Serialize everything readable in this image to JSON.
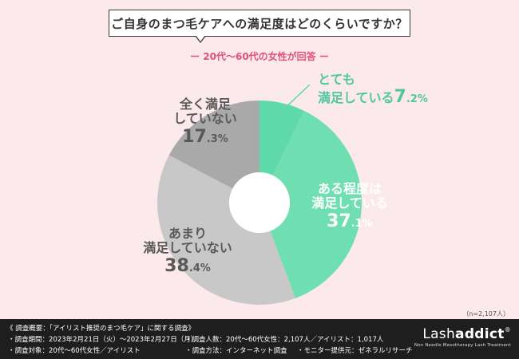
{
  "title": "ご自身のまつ毛ケアへの満足度はどのくらいですか？",
  "subtitle": "ー 20代〜60代の女性が回答 ー",
  "sample_size": "（n=2,107人）",
  "chart_data": {
    "type": "pie",
    "donut": true,
    "slices": [
      {
        "label": "とても満足している",
        "value": 7.2,
        "color": "#5ed9a9"
      },
      {
        "label": "ある程度は満足している",
        "value": 37.1,
        "color": "#6fdfb2"
      },
      {
        "label": "あまり満足していない",
        "value": 38.4,
        "color": "#c8c8c8"
      },
      {
        "label": "全く満足していない",
        "value": 17.3,
        "color": "#a9a9a9"
      }
    ],
    "label_text": {
      "s0": {
        "line1": "とても",
        "line2": "満足している",
        "pct_big": "7",
        "pct_small": ".2%"
      },
      "s1": {
        "line1": "ある程度は",
        "line2": "満足している",
        "pct_big": "37",
        "pct_small": ".1%"
      },
      "s2": {
        "line1": "あまり",
        "line2": "満足していない",
        "pct_big": "38",
        "pct_small": ".4%"
      },
      "s3": {
        "line1": "全く満足",
        "line2": "していない",
        "pct_big": "17",
        "pct_small": ".3%"
      }
    }
  },
  "footer": {
    "survey_title": "《 調査概要：「アイリスト推奨のまつ毛ケア」に関する調査》",
    "period": "・調査期間：2023年2月21日（火）〜2023年2月27日（月）",
    "target": "・調査対象：20代〜60代女性／アイリスト",
    "count": "・調査人数：20代〜60代女性：2,107人／アイリスト：1,017人",
    "method": "・調査方法：インターネット調査",
    "monitor": "・モニター提供元：ゼネラルリサーチ",
    "brand_main": "Lash",
    "brand_bold": "addict",
    "brand_mark": "®",
    "brand_tagline": "Non Needle Mesotherapy Lash Treatment"
  }
}
